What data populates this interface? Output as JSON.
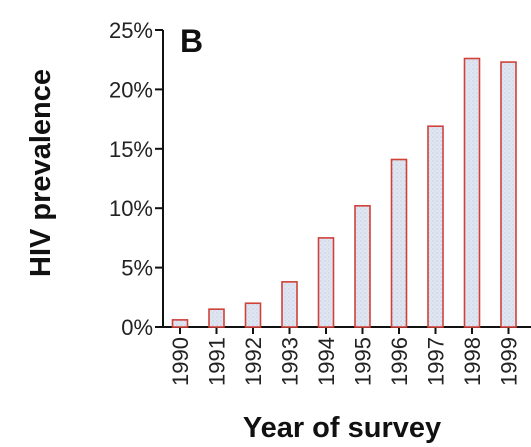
{
  "chart_data": {
    "type": "bar",
    "panel_label": "B",
    "title": "",
    "xlabel": "Year of survey",
    "ylabel": "HIV prevalence",
    "categories": [
      "1990",
      "1991",
      "1992",
      "1993",
      "1994",
      "1995",
      "1996",
      "1997",
      "1998",
      "1999"
    ],
    "values": [
      0.6,
      1.5,
      2.0,
      3.8,
      7.5,
      10.2,
      14.1,
      16.9,
      22.6,
      22.3
    ],
    "y_ticks": [
      "0%",
      "5%",
      "10%",
      "15%",
      "20%",
      "25%"
    ],
    "ylim": [
      0,
      25
    ],
    "grid": false,
    "bar_fill": "#dce3f0",
    "bar_stroke": "#d0413a",
    "axis_color": "#111111"
  }
}
